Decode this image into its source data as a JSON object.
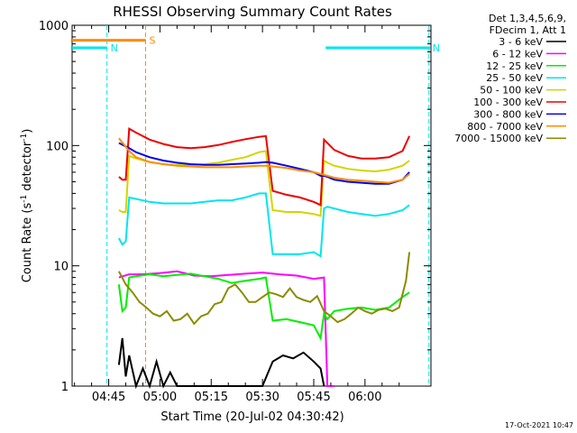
{
  "chart_data": {
    "type": "line",
    "title": "RHESSI Observing Summary Count Rates",
    "xlabel": "Start Time (20-Jul-02 04:30:42)",
    "ylabel_main": "Count Rate (s",
    "ylabel_sup1": "-1",
    "ylabel_mid": " detector",
    "ylabel_sup2": "-1",
    "ylabel_end": ")",
    "yscale": "log",
    "ylim": [
      1,
      1000
    ],
    "xlim_minutes": [
      -10.7,
      94.3
    ],
    "x_ticks": [
      {
        "label": "04:45",
        "minute": 0
      },
      {
        "label": "05:00",
        "minute": 15
      },
      {
        "label": "05:15",
        "minute": 30
      },
      {
        "label": "05:30",
        "minute": 45
      },
      {
        "label": "05:45",
        "minute": 60
      },
      {
        "label": "06:00",
        "minute": 75
      }
    ],
    "y_ticks": [
      {
        "label": "1",
        "value": 1
      },
      {
        "label": "10",
        "value": 10
      },
      {
        "label": "100",
        "value": 100
      },
      {
        "label": "1000",
        "value": 1000
      }
    ],
    "legend_header": [
      "Det 1,3,4,5,6,9,",
      "FDecim 1, Att 1"
    ],
    "legend_placement": "right",
    "timestamp": "17-Oct-2021 10:47",
    "series": [
      {
        "name": "3 - 6 keV",
        "color": "#000000",
        "x": [
          3,
          4,
          5,
          6,
          8,
          10,
          12,
          14,
          16,
          18,
          20,
          22,
          24,
          26,
          30,
          34,
          38,
          42,
          45,
          48,
          51,
          54,
          57,
          60,
          62,
          63
        ],
        "y": [
          1.5,
          2.5,
          1.2,
          1.8,
          1,
          1.4,
          1,
          1.6,
          1,
          1.3,
          1,
          1,
          1,
          1,
          1,
          1,
          1,
          1,
          1,
          1.6,
          1.8,
          1.7,
          1.9,
          1.6,
          1.4,
          1
        ]
      },
      {
        "name": "6 - 12 keV",
        "color": "#ff00ff",
        "x": [
          3,
          6,
          10,
          15,
          20,
          25,
          30,
          35,
          40,
          45,
          50,
          55,
          60,
          63,
          64,
          66
        ],
        "y": [
          8,
          8.5,
          8.5,
          8.7,
          9,
          8.3,
          8.2,
          8.4,
          8.6,
          8.8,
          8.5,
          8.3,
          7.8,
          8,
          1,
          1
        ]
      },
      {
        "name": "12 - 25 keV",
        "color": "#00ee00",
        "x": [
          3,
          4,
          5,
          6,
          8,
          12,
          16,
          20,
          24,
          28,
          32,
          36,
          40,
          44,
          46,
          48,
          52,
          56,
          60,
          62,
          63,
          64,
          66,
          70,
          74,
          78,
          82,
          86,
          88
        ],
        "y": [
          7,
          4.2,
          4.5,
          8,
          8.2,
          8.5,
          8.2,
          8.4,
          8.6,
          8.2,
          7.8,
          7.2,
          7.5,
          7.8,
          8,
          3.5,
          3.6,
          3.4,
          3.2,
          2.5,
          4,
          3.6,
          4.2,
          4.4,
          4.5,
          4.3,
          4.5,
          5.5,
          6
        ]
      },
      {
        "name": "25 - 50 keV",
        "color": "#00e5ee",
        "x": [
          3,
          4,
          5,
          6,
          8,
          12,
          16,
          20,
          24,
          28,
          32,
          36,
          40,
          44,
          46,
          48,
          52,
          56,
          60,
          62,
          63,
          64,
          66,
          70,
          74,
          78,
          82,
          86,
          88
        ],
        "y": [
          17,
          15,
          16,
          37,
          36,
          34,
          33,
          33,
          33,
          34,
          35,
          35,
          37,
          40,
          40,
          12.5,
          12.5,
          12.5,
          13,
          12,
          30,
          31,
          30,
          28,
          27,
          26,
          27,
          29,
          32
        ]
      },
      {
        "name": "50 - 100 keV",
        "color": "#d4d400",
        "x": [
          3,
          4,
          5,
          6,
          8,
          12,
          16,
          20,
          24,
          28,
          32,
          36,
          40,
          44,
          46,
          48,
          52,
          56,
          60,
          62,
          63,
          64,
          66,
          70,
          74,
          78,
          82,
          86,
          88
        ],
        "y": [
          29,
          28,
          28,
          82,
          78,
          73,
          70,
          69,
          69,
          70,
          72,
          76,
          80,
          88,
          90,
          29,
          28,
          28,
          27,
          26,
          75,
          72,
          68,
          64,
          62,
          61,
          63,
          68,
          75
        ]
      },
      {
        "name": "100 - 300 keV",
        "color": "#ee0000",
        "x": [
          3,
          4,
          5,
          6,
          8,
          12,
          16,
          20,
          24,
          28,
          32,
          36,
          40,
          44,
          46,
          48,
          52,
          56,
          60,
          62,
          63,
          64,
          66,
          70,
          74,
          78,
          82,
          86,
          88
        ],
        "y": [
          55,
          52,
          52,
          138,
          128,
          112,
          103,
          97,
          95,
          97,
          101,
          107,
          113,
          118,
          120,
          42,
          39,
          37,
          34,
          32,
          112,
          105,
          92,
          82,
          78,
          78,
          80,
          90,
          120
        ]
      },
      {
        "name": "300 - 800 keV",
        "color": "#0000ee",
        "x": [
          3,
          6,
          8,
          12,
          16,
          20,
          24,
          28,
          32,
          36,
          40,
          44,
          46,
          48,
          52,
          56,
          60,
          62,
          63,
          64,
          66,
          70,
          74,
          78,
          82,
          86,
          88
        ],
        "y": [
          105,
          95,
          88,
          80,
          75,
          72,
          70,
          69,
          69,
          70,
          71,
          72,
          73,
          72,
          68,
          64,
          60,
          56,
          56,
          55,
          52,
          50,
          49,
          48,
          48,
          52,
          60
        ]
      },
      {
        "name": "800 - 7000 keV",
        "color": "#ff8c00",
        "x": [
          3,
          6,
          8,
          12,
          16,
          20,
          24,
          28,
          32,
          36,
          40,
          44,
          46,
          48,
          52,
          56,
          60,
          62,
          63,
          64,
          66,
          70,
          74,
          78,
          82,
          86,
          88
        ],
        "y": [
          115,
          90,
          80,
          73,
          70,
          68,
          67,
          66,
          66,
          66,
          67,
          68,
          68,
          67,
          65,
          62,
          60,
          58,
          57,
          56,
          54,
          52,
          51,
          50,
          49,
          52,
          58
        ]
      },
      {
        "name": "7000 - 15000 keV",
        "color": "#8b8b00",
        "x": [
          3,
          5,
          7,
          9,
          11,
          13,
          15,
          17,
          19,
          21,
          23,
          25,
          27,
          29,
          31,
          33,
          35,
          37,
          39,
          41,
          43,
          45,
          47,
          49,
          51,
          53,
          55,
          57,
          59,
          61,
          63,
          65,
          67,
          69,
          71,
          73,
          75,
          77,
          79,
          81,
          83,
          85,
          87,
          88
        ],
        "y": [
          9,
          7,
          6,
          5,
          4.5,
          4,
          3.8,
          4.2,
          3.5,
          3.6,
          4,
          3.3,
          3.8,
          4,
          4.8,
          5,
          6.5,
          7,
          6,
          5,
          5,
          5.5,
          6,
          5.8,
          5.5,
          6.5,
          5.5,
          5.2,
          5,
          5.6,
          4.2,
          3.8,
          3.4,
          3.6,
          4,
          4.5,
          4.2,
          4,
          4.3,
          4.4,
          4.2,
          4.5,
          7.5,
          13
        ]
      }
    ],
    "annotations": [
      {
        "text": "N",
        "color": "#00e5ee",
        "level": 650,
        "x_start": -10.7,
        "x_end": -0.5,
        "line_x": -0.5
      },
      {
        "text": "N",
        "color": "#00e5ee",
        "level": 650,
        "x_start": 63.5,
        "x_end": 94,
        "line_x": 93.7
      },
      {
        "text": "S",
        "color": "#ff8c00",
        "level": 750,
        "x_start": -10.7,
        "x_end": 10.8,
        "line_x": 10.8
      }
    ]
  }
}
